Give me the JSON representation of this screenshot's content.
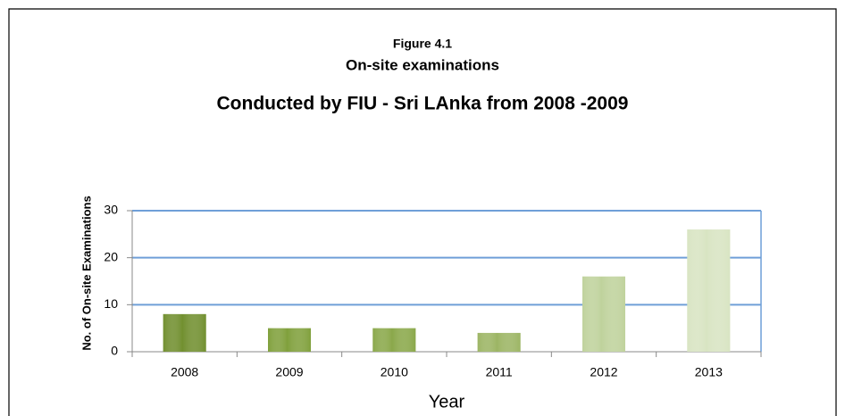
{
  "chart_data": {
    "type": "bar",
    "figure_label": "Figure  4.1",
    "title": "On-site examinations",
    "subtitle": "Conducted by FIU - Sri LAnka from 2008 -2009",
    "y_label": "No. of  On-site Examinations",
    "x_label": "Year",
    "categories": [
      "2008",
      "2009",
      "2010",
      "2011",
      "2012",
      "2013"
    ],
    "values": [
      8,
      5,
      5,
      4,
      16,
      26
    ],
    "colors": [
      "#718f2f",
      "#80a03c",
      "#8aa84a",
      "#9cb564",
      "#bfd29c",
      "#d8e4c2"
    ],
    "ylim": [
      0,
      30
    ],
    "yticks": [
      0,
      10,
      20,
      30
    ],
    "grid": true
  }
}
